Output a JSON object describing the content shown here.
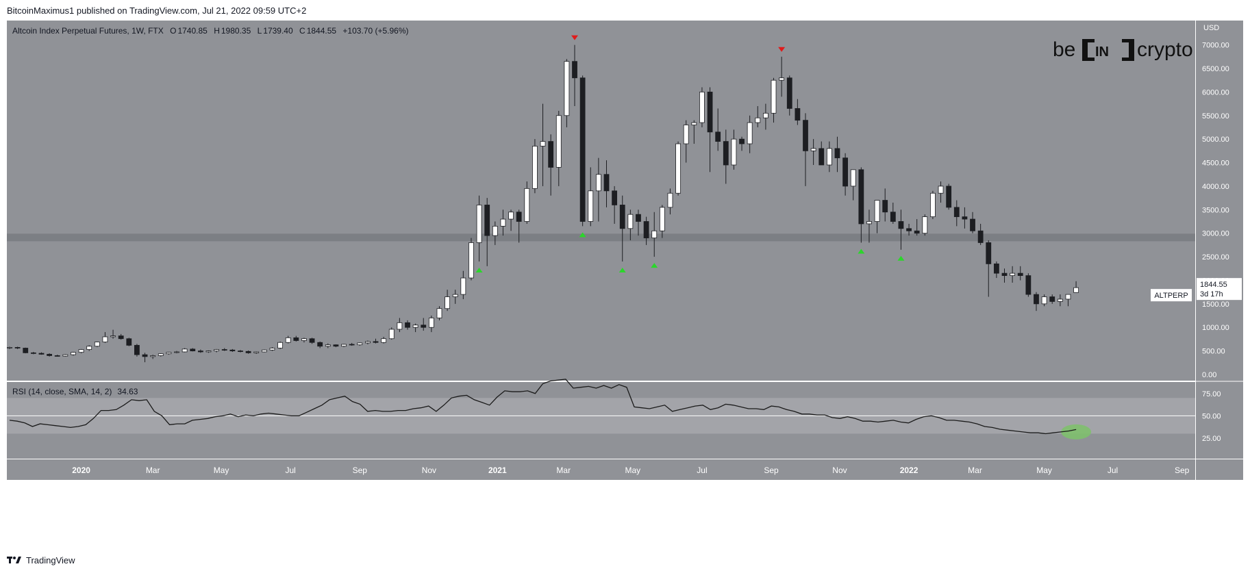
{
  "header": {
    "published_text": "BitcoinMaximus1 published on TradingView.com, Jul 21, 2022 09:59 UTC+2"
  },
  "footer": {
    "brand": "TradingView"
  },
  "logo": {
    "be": "be",
    "in": "IN",
    "crypto": "crypto"
  },
  "legend": {
    "symbol": "Altcoin Index Perpetual Futures, 1W, FTX",
    "o_label": "O",
    "o": "1740.85",
    "h_label": "H",
    "h": "1980.35",
    "l_label": "L",
    "l": "1739.40",
    "c_label": "C",
    "c": "1844.55",
    "change": "+103.70 (+5.96%)"
  },
  "price_axis": {
    "currency": "USD",
    "ticks": [
      "7000.00",
      "6500.00",
      "6000.00",
      "5500.00",
      "5000.00",
      "4500.00",
      "4000.00",
      "3500.00",
      "3000.00",
      "2500.00",
      "2000.00",
      "1500.00",
      "1000.00",
      "500.00",
      "0.00"
    ],
    "symbol_tag": "ALTPERP",
    "last_price": "1844.55",
    "countdown": "3d 17h"
  },
  "rsi": {
    "label": "RSI (14, close, SMA, 14, 2)",
    "value": "34.63",
    "ticks": [
      "75.00",
      "50.00",
      "25.00"
    ],
    "band": [
      30,
      70
    ]
  },
  "time_axis": {
    "labels": [
      "2020",
      "Mar",
      "May",
      "Jul",
      "Sep",
      "Nov",
      "2021",
      "Mar",
      "May",
      "Jul",
      "Sep",
      "Nov",
      "2022",
      "Mar",
      "May",
      "Jul",
      "Sep"
    ],
    "bold": [
      "2020",
      "2021",
      "2022"
    ]
  },
  "colors": {
    "chart_bg": "#909297",
    "up_candle": "#ffffff",
    "down_candle": "#1d1e22",
    "support_zone": "#76787d",
    "top_marker": "#e01b1b",
    "bottom_marker": "#2bd62b",
    "rsi_band": "#a3a4a9",
    "rsi_highlight": "#7ec26a"
  },
  "chart_data": {
    "type": "candlestick",
    "title": "Altcoin Index Perpetual Futures, 1W, FTX",
    "ylabel": "USD",
    "ylim": [
      0,
      7600
    ],
    "x_start": "2019-10-28",
    "x_interval": "1W",
    "support_zone": [
      2830,
      2990
    ],
    "ohlc": [
      [
        560,
        590,
        540,
        575
      ],
      [
        575,
        590,
        540,
        560
      ],
      [
        560,
        570,
        450,
        460
      ],
      [
        460,
        480,
        430,
        450
      ],
      [
        450,
        470,
        420,
        430
      ],
      [
        430,
        450,
        380,
        400
      ],
      [
        400,
        420,
        380,
        390
      ],
      [
        390,
        430,
        380,
        420
      ],
      [
        420,
        480,
        400,
        470
      ],
      [
        470,
        540,
        450,
        530
      ],
      [
        530,
        620,
        500,
        600
      ],
      [
        600,
        700,
        580,
        690
      ],
      [
        690,
        900,
        670,
        800
      ],
      [
        800,
        950,
        760,
        820
      ],
      [
        820,
        860,
        740,
        760
      ],
      [
        760,
        780,
        600,
        620
      ],
      [
        620,
        650,
        380,
        420
      ],
      [
        420,
        460,
        260,
        380
      ],
      [
        380,
        420,
        330,
        400
      ],
      [
        400,
        450,
        380,
        440
      ],
      [
        440,
        480,
        420,
        470
      ],
      [
        470,
        500,
        450,
        480
      ],
      [
        480,
        560,
        470,
        540
      ],
      [
        540,
        560,
        490,
        500
      ],
      [
        500,
        530,
        460,
        480
      ],
      [
        480,
        510,
        460,
        500
      ],
      [
        500,
        540,
        470,
        530
      ],
      [
        530,
        560,
        500,
        520
      ],
      [
        520,
        540,
        480,
        500
      ],
      [
        500,
        520,
        470,
        490
      ],
      [
        490,
        510,
        440,
        460
      ],
      [
        460,
        490,
        440,
        480
      ],
      [
        480,
        530,
        470,
        520
      ],
      [
        520,
        580,
        500,
        560
      ],
      [
        560,
        700,
        540,
        680
      ],
      [
        680,
        820,
        660,
        780
      ],
      [
        780,
        820,
        700,
        720
      ],
      [
        720,
        780,
        680,
        760
      ],
      [
        760,
        780,
        650,
        680
      ],
      [
        680,
        700,
        560,
        600
      ],
      [
        600,
        660,
        560,
        630
      ],
      [
        630,
        640,
        580,
        600
      ],
      [
        600,
        650,
        580,
        640
      ],
      [
        640,
        670,
        610,
        630
      ],
      [
        630,
        680,
        610,
        670
      ],
      [
        670,
        720,
        640,
        700
      ],
      [
        700,
        760,
        660,
        680
      ],
      [
        680,
        800,
        660,
        760
      ],
      [
        760,
        1000,
        740,
        960
      ],
      [
        960,
        1200,
        900,
        1100
      ],
      [
        1100,
        1150,
        950,
        1000
      ],
      [
        1000,
        1080,
        900,
        1050
      ],
      [
        1050,
        1200,
        930,
        1000
      ],
      [
        1000,
        1250,
        900,
        1200
      ],
      [
        1200,
        1450,
        1150,
        1400
      ],
      [
        1400,
        1800,
        1350,
        1650
      ],
      [
        1650,
        1800,
        1500,
        1700
      ],
      [
        1700,
        2200,
        1600,
        2050
      ],
      [
        2050,
        2900,
        2000,
        2800
      ],
      [
        2800,
        3800,
        2400,
        3600
      ],
      [
        3600,
        3750,
        2300,
        2950
      ],
      [
        2950,
        3250,
        2750,
        3150
      ],
      [
        3150,
        3500,
        2950,
        3300
      ],
      [
        3300,
        3500,
        3050,
        3450
      ],
      [
        3450,
        3500,
        2800,
        3250
      ],
      [
        3250,
        4100,
        3200,
        3950
      ],
      [
        3950,
        5000,
        3850,
        4850
      ],
      [
        4850,
        5750,
        4000,
        4950
      ],
      [
        4950,
        5100,
        3800,
        4400
      ],
      [
        4400,
        5600,
        4000,
        5500
      ],
      [
        5500,
        6700,
        5250,
        6650
      ],
      [
        6650,
        7000,
        5700,
        6300
      ],
      [
        6300,
        6350,
        3150,
        3250
      ],
      [
        3250,
        4400,
        3150,
        3900
      ],
      [
        3900,
        4600,
        3250,
        4250
      ],
      [
        4250,
        4550,
        3550,
        3900
      ],
      [
        3900,
        4000,
        3200,
        3600
      ],
      [
        3600,
        3800,
        2400,
        3100
      ],
      [
        3100,
        3500,
        2850,
        3400
      ],
      [
        3400,
        3500,
        2950,
        3250
      ],
      [
        3250,
        3350,
        2750,
        2900
      ],
      [
        2900,
        3450,
        2500,
        3050
      ],
      [
        3050,
        3600,
        2900,
        3550
      ],
      [
        3550,
        3950,
        3400,
        3850
      ],
      [
        3850,
        4950,
        3800,
        4900
      ],
      [
        4900,
        5400,
        4500,
        5300
      ],
      [
        5300,
        5400,
        4900,
        5350
      ],
      [
        5350,
        6100,
        5250,
        6000
      ],
      [
        6000,
        6100,
        4300,
        5150
      ],
      [
        5150,
        5650,
        4750,
        4950
      ],
      [
        4950,
        5200,
        4050,
        4450
      ],
      [
        4450,
        5200,
        4350,
        5000
      ],
      [
        5000,
        5050,
        4750,
        4900
      ],
      [
        4900,
        5500,
        4700,
        5350
      ],
      [
        5350,
        5700,
        5250,
        5450
      ],
      [
        5450,
        5750,
        5200,
        5550
      ],
      [
        5550,
        6300,
        5350,
        6250
      ],
      [
        6250,
        6750,
        5900,
        6300
      ],
      [
        6300,
        6350,
        5500,
        5650
      ],
      [
        5650,
        5850,
        5300,
        5400
      ],
      [
        5400,
        5550,
        4000,
        4750
      ],
      [
        4750,
        5000,
        4450,
        4800
      ],
      [
        4800,
        4950,
        4450,
        4450
      ],
      [
        4450,
        4950,
        4300,
        4800
      ],
      [
        4800,
        5050,
        4300,
        4600
      ],
      [
        4600,
        4700,
        3800,
        4000
      ],
      [
        4000,
        4350,
        3700,
        4350
      ],
      [
        4350,
        4400,
        2800,
        3200
      ],
      [
        3200,
        3500,
        2800,
        3250
      ],
      [
        3250,
        3700,
        3000,
        3700
      ],
      [
        3700,
        3950,
        3250,
        3450
      ],
      [
        3450,
        3650,
        3200,
        3250
      ],
      [
        3250,
        3500,
        2650,
        3100
      ],
      [
        3100,
        3200,
        2950,
        3050
      ],
      [
        3050,
        3300,
        2950,
        3000
      ],
      [
        3000,
        3400,
        2950,
        3350
      ],
      [
        3350,
        3900,
        3300,
        3850
      ],
      [
        3850,
        4100,
        3650,
        4000
      ],
      [
        4000,
        4050,
        3500,
        3550
      ],
      [
        3550,
        3700,
        3150,
        3350
      ],
      [
        3350,
        3550,
        3100,
        3300
      ],
      [
        3300,
        3450,
        3000,
        3050
      ],
      [
        3050,
        3200,
        2750,
        2800
      ],
      [
        2800,
        2850,
        1650,
        2350
      ],
      [
        2350,
        2400,
        2050,
        2150
      ],
      [
        2150,
        2250,
        1950,
        2100
      ],
      [
        2100,
        2300,
        1950,
        2150
      ],
      [
        2150,
        2300,
        2000,
        2100
      ],
      [
        2100,
        2150,
        1650,
        1700
      ],
      [
        1700,
        1750,
        1350,
        1500
      ],
      [
        1500,
        1700,
        1450,
        1650
      ],
      [
        1650,
        1700,
        1500,
        1550
      ],
      [
        1550,
        1700,
        1450,
        1600
      ],
      [
        1600,
        1700,
        1450,
        1700
      ],
      [
        1740.85,
        1980.35,
        1739.4,
        1844.55
      ]
    ],
    "top_markers": [
      71,
      97
    ],
    "bottom_markers": [
      59,
      72,
      77,
      81,
      107,
      112
    ],
    "rsi": [
      45,
      44,
      42,
      38,
      41,
      40,
      39,
      38,
      37,
      38,
      40,
      47,
      56,
      56,
      57,
      62,
      68,
      67,
      68,
      55,
      50,
      40,
      41,
      41,
      45,
      46,
      47,
      49,
      50,
      52,
      49,
      51,
      50,
      52,
      53,
      52,
      51,
      50,
      50,
      54,
      58,
      62,
      68,
      70,
      72,
      66,
      63,
      55,
      56,
      55,
      55,
      56,
      56,
      58,
      59,
      61,
      55,
      62,
      70,
      72,
      73,
      68,
      65,
      62,
      71,
      78,
      77,
      77,
      78,
      75,
      86,
      89,
      90,
      91,
      81,
      82,
      83,
      81,
      84,
      81,
      85,
      82,
      60,
      59,
      58,
      60,
      62,
      55,
      57,
      59,
      61,
      62,
      57,
      59,
      63,
      62,
      60,
      58,
      58,
      57,
      61,
      60,
      57,
      55,
      52,
      52,
      51,
      51,
      48,
      47,
      49,
      47,
      44,
      44,
      43,
      44,
      45,
      43,
      42,
      46,
      49,
      50,
      48,
      45,
      45,
      44,
      43,
      41,
      38,
      37,
      35,
      34,
      33,
      32,
      31,
      31,
      30,
      31,
      32,
      33,
      34.63
    ],
    "rsi_highlight": [
      134,
      32
    ]
  }
}
